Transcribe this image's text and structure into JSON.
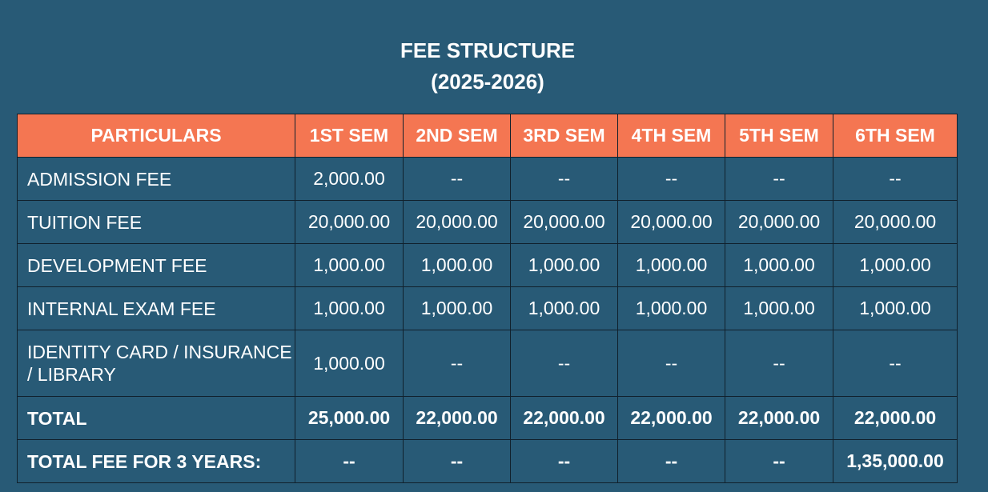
{
  "title": {
    "line1": "FEE STRUCTURE",
    "line2": "(2025-2026)"
  },
  "colors": {
    "background": "#285a76",
    "header": "#f47652",
    "text": "#ffffff"
  },
  "table": {
    "headers": [
      "PARTICULARS",
      "1ST SEM",
      "2ND SEM",
      "3RD SEM",
      "4TH SEM",
      "5TH SEM",
      "6TH SEM"
    ],
    "rows": [
      {
        "label": "ADMISSION FEE",
        "values": [
          "2,000.00",
          "--",
          "--",
          "--",
          "--",
          "--"
        ]
      },
      {
        "label": "TUITION FEE",
        "values": [
          "20,000.00",
          "20,000.00",
          "20,000.00",
          "20,000.00",
          "20,000.00",
          "20,000.00"
        ]
      },
      {
        "label": "DEVELOPMENT FEE",
        "values": [
          "1,000.00",
          "1,000.00",
          "1,000.00",
          "1,000.00",
          "1,000.00",
          "1,000.00"
        ]
      },
      {
        "label": "INTERNAL EXAM FEE",
        "values": [
          "1,000.00",
          "1,000.00",
          "1,000.00",
          "1,000.00",
          "1,000.00",
          "1,000.00"
        ]
      },
      {
        "label": "IDENTITY CARD / INSURANCE / LIBRARY",
        "values": [
          "1,000.00",
          "--",
          "--",
          "--",
          "--",
          "--"
        ]
      },
      {
        "label": "TOTAL",
        "values": [
          "25,000.00",
          "22,000.00",
          "22,000.00",
          "22,000.00",
          "22,000.00",
          "22,000.00"
        ]
      },
      {
        "label": "TOTAL FEE FOR 3 YEARS:",
        "values": [
          "--",
          "--",
          "--",
          "--",
          "--",
          "1,35,000.00"
        ]
      }
    ]
  }
}
